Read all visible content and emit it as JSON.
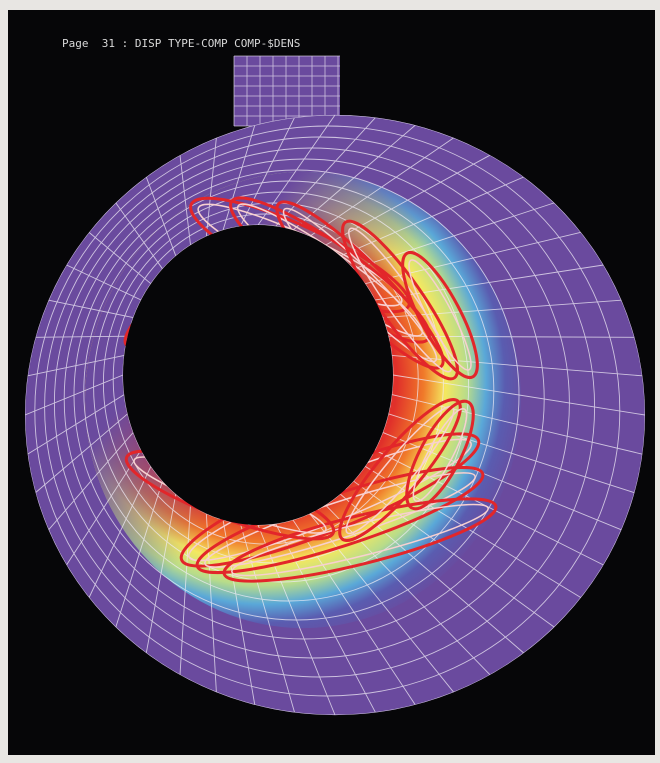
{
  "header": {
    "title": "Page  31 : DISP TYPE-COMP COMP-$DENS"
  }
}
